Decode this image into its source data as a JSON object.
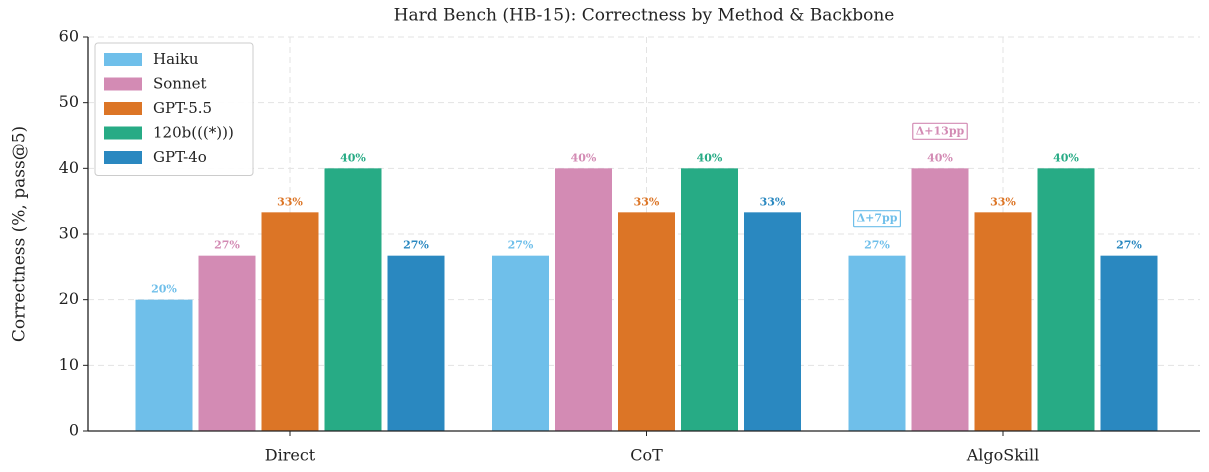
{
  "chart_data": {
    "type": "bar",
    "title": "Hard Bench (HB-15): Correctness by Method & Backbone",
    "ylabel": "Correctness (%, pass@5)",
    "categories": [
      "Direct",
      "CoT",
      "AlgoSkill"
    ],
    "series": [
      {
        "name": "Haiku",
        "color": "#6fbfea",
        "values": [
          20,
          26.7,
          26.7
        ],
        "value_labels": [
          "20%",
          "27%",
          "27%"
        ],
        "annotations": [
          null,
          null,
          "Δ+7pp"
        ]
      },
      {
        "name": "Sonnet",
        "color": "#d38bb4",
        "values": [
          26.7,
          40,
          40
        ],
        "value_labels": [
          "27%",
          "40%",
          "40%"
        ],
        "annotations": [
          null,
          null,
          "Δ+13pp"
        ]
      },
      {
        "name": "GPT-5.5",
        "color": "#dc7526",
        "values": [
          33.3,
          33.3,
          33.3
        ],
        "value_labels": [
          "33%",
          "33%",
          "33%"
        ]
      },
      {
        "name": "120b(((*)))",
        "color": "#27ab85",
        "values": [
          40,
          40,
          40
        ],
        "value_labels": [
          "40%",
          "40%",
          "40%"
        ]
      },
      {
        "name": "GPT-4o",
        "color": "#2a88c0",
        "values": [
          26.7,
          33.3,
          26.7
        ],
        "value_labels": [
          "27%",
          "33%",
          "27%"
        ]
      }
    ],
    "ylim": [
      0,
      60
    ],
    "yticks": [
      0,
      10,
      20,
      30,
      40,
      50,
      60
    ],
    "grid": true,
    "legend": "upper left"
  }
}
